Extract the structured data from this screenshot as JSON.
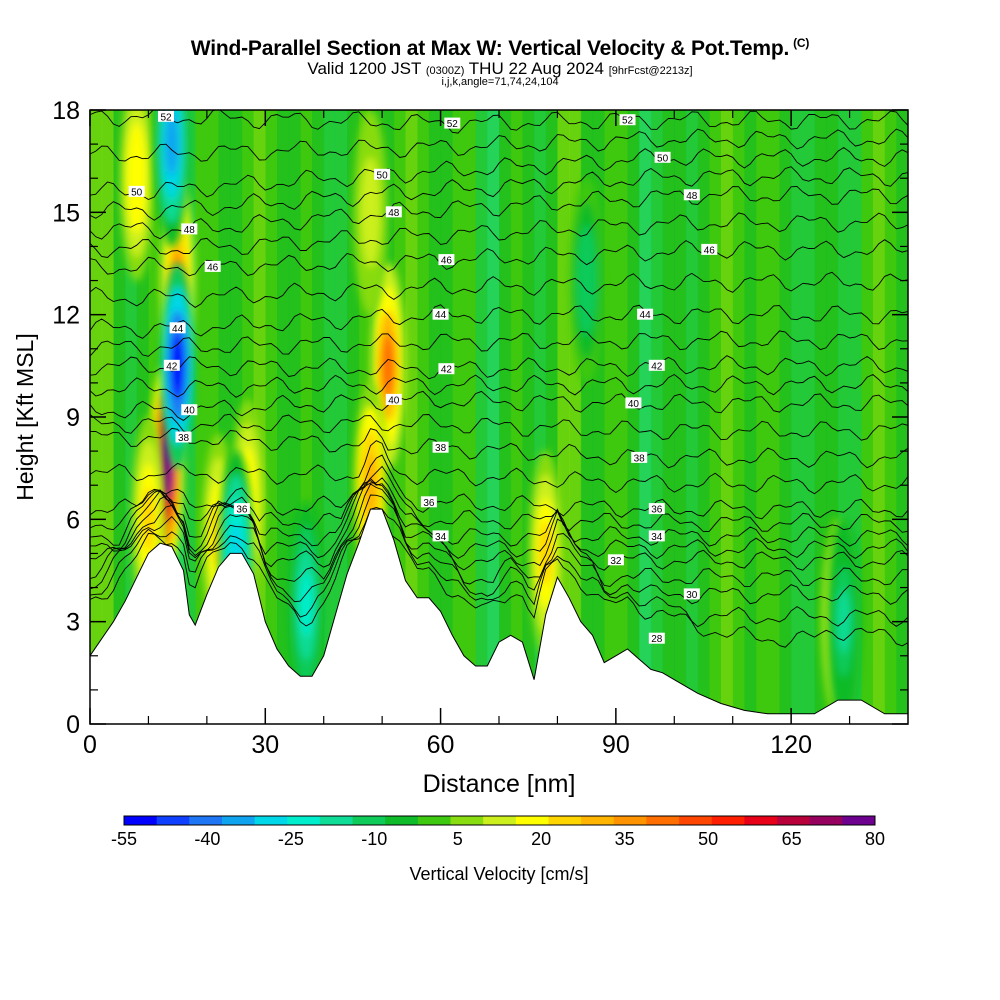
{
  "header": {
    "title": "Wind-Parallel Section at Max W: Vertical Velocity & Pot.Temp.",
    "copyright_mark": "(C)",
    "valid_prefix": "Valid 1200 JST",
    "valid_utc": "(0300Z)",
    "valid_date": "THU 22 Aug 2024",
    "forecast_info": "[9hrFcst@2213z]",
    "indices": "i,j,k,angle=71,74,24,104"
  },
  "colorbar": {
    "label": "Vertical Velocity [cm/s]",
    "tick_labels": [
      "-55",
      "-40",
      "-25",
      "-10",
      "5",
      "20",
      "35",
      "50",
      "65",
      "80"
    ],
    "colors": [
      "#0000ff",
      "#0f3fff",
      "#1e76f5",
      "#0fa3f0",
      "#00d7e8",
      "#00eecc",
      "#0fdc96",
      "#0fcb5a",
      "#0fbb28",
      "#3ec80f",
      "#88dc0f",
      "#ccf01e",
      "#ffff00",
      "#ffd500",
      "#ffb400",
      "#ff9400",
      "#ff6e00",
      "#ff4600",
      "#ff1e00",
      "#e80018",
      "#b8003a",
      "#96005e",
      "#6e0090"
    ]
  },
  "chart_data": {
    "type": "heatmap",
    "title": "Wind-Parallel Section at Max W: Vertical Velocity & Pot.Temp.",
    "xlabel": "Distance [nm]",
    "ylabel": "Height [Kft MSL]",
    "xlim": [
      0,
      140
    ],
    "ylim": [
      0,
      18
    ],
    "x_ticks": [
      0,
      30,
      60,
      90,
      120
    ],
    "y_ticks": [
      0,
      3,
      6,
      9,
      12,
      15,
      18
    ],
    "color_variable": "Vertical Velocity [cm/s]",
    "color_range": [
      -55,
      80
    ],
    "contour_variable": "Potential Temperature",
    "terrain": {
      "x": [
        0,
        2,
        4,
        6,
        8,
        10,
        12,
        14,
        16,
        17,
        18,
        20,
        22,
        24,
        26,
        28,
        30,
        31,
        32,
        34,
        36,
        38,
        40,
        42,
        44,
        46,
        48,
        50,
        52,
        54,
        56,
        58,
        60,
        62,
        64,
        66,
        68,
        70,
        72,
        74,
        76,
        78,
        80,
        82,
        84,
        86,
        88,
        90,
        92,
        94,
        96,
        98,
        100,
        104,
        108,
        112,
        116,
        120,
        124,
        128,
        132,
        136,
        140
      ],
      "height": [
        2.0,
        2.5,
        3.0,
        3.6,
        4.3,
        5.0,
        5.3,
        5.2,
        4.5,
        3.2,
        2.9,
        3.8,
        4.6,
        5.0,
        5.0,
        4.4,
        3.0,
        2.6,
        2.2,
        1.7,
        1.4,
        1.4,
        2.0,
        3.2,
        4.4,
        5.3,
        6.3,
        6.3,
        5.4,
        4.2,
        3.7,
        3.7,
        3.3,
        2.6,
        2.0,
        1.7,
        1.7,
        2.4,
        2.6,
        2.4,
        1.3,
        3.2,
        4.3,
        3.7,
        3.0,
        2.6,
        1.8,
        2.0,
        2.2,
        1.9,
        1.6,
        1.5,
        1.3,
        0.9,
        0.6,
        0.4,
        0.3,
        0.3,
        0.3,
        0.7,
        0.7,
        0.3,
        0.3
      ]
    },
    "updraft_cores": [
      {
        "x": 13,
        "height": 7.5,
        "w": 75
      },
      {
        "x": 51,
        "height": 10.5,
        "w": 40
      },
      {
        "x": 48,
        "height": 7.0,
        "w": 30
      },
      {
        "x": 8,
        "height": 16.0,
        "w": 20
      },
      {
        "x": 10,
        "height": 6.0,
        "w": 25
      },
      {
        "x": 22,
        "height": 5.5,
        "w": 25
      },
      {
        "x": 27,
        "height": 6.5,
        "w": 20
      },
      {
        "x": 78,
        "height": 5.0,
        "w": 25
      },
      {
        "x": 128,
        "height": 3.0,
        "w": 20
      },
      {
        "x": 48,
        "height": 15.0,
        "w": 15
      },
      {
        "x": 15,
        "height": 13.0,
        "w": 35
      }
    ],
    "downdraft_cores": [
      {
        "x": 15,
        "height": 10.5,
        "w": -55
      },
      {
        "x": 14,
        "height": 17.0,
        "w": -35
      },
      {
        "x": 25,
        "height": 5.0,
        "w": -30
      },
      {
        "x": 37,
        "height": 3.5,
        "w": -25
      },
      {
        "x": 129,
        "height": 3.0,
        "w": -15
      },
      {
        "x": 85,
        "height": 13.0,
        "w": -12
      }
    ],
    "theta_contours": [
      {
        "label": "28",
        "label_x": 97,
        "label_y": 2.5
      },
      {
        "label": "30",
        "label_x": 103,
        "label_y": 3.8
      },
      {
        "label": "32",
        "label_x": 90,
        "label_y": 4.8
      },
      {
        "label": "34",
        "label_x": 60,
        "label_y": 5.5
      },
      {
        "label": "34",
        "label_x": 97,
        "label_y": 5.5
      },
      {
        "label": "36",
        "label_x": 26,
        "label_y": 6.3
      },
      {
        "label": "36",
        "label_x": 58,
        "label_y": 6.5
      },
      {
        "label": "36",
        "label_x": 97,
        "label_y": 6.3
      },
      {
        "label": "38",
        "label_x": 16,
        "label_y": 8.4
      },
      {
        "label": "38",
        "label_x": 60,
        "label_y": 8.1
      },
      {
        "label": "38",
        "label_x": 94,
        "label_y": 7.8
      },
      {
        "label": "40",
        "label_x": 17,
        "label_y": 9.2
      },
      {
        "label": "40",
        "label_x": 52,
        "label_y": 9.5
      },
      {
        "label": "40",
        "label_x": 93,
        "label_y": 9.4
      },
      {
        "label": "42",
        "label_x": 14,
        "label_y": 10.5
      },
      {
        "label": "42",
        "label_x": 61,
        "label_y": 10.4
      },
      {
        "label": "42",
        "label_x": 97,
        "label_y": 10.5
      },
      {
        "label": "44",
        "label_x": 15,
        "label_y": 11.6
      },
      {
        "label": "44",
        "label_x": 60,
        "label_y": 12.0
      },
      {
        "label": "44",
        "label_x": 95,
        "label_y": 12.0
      },
      {
        "label": "46",
        "label_x": 21,
        "label_y": 13.4
      },
      {
        "label": "46",
        "label_x": 61,
        "label_y": 13.6
      },
      {
        "label": "46",
        "label_x": 106,
        "label_y": 13.9
      },
      {
        "label": "48",
        "label_x": 17,
        "label_y": 14.5
      },
      {
        "label": "48",
        "label_x": 52,
        "label_y": 15.0
      },
      {
        "label": "48",
        "label_x": 103,
        "label_y": 15.5
      },
      {
        "label": "50",
        "label_x": 8,
        "label_y": 15.6
      },
      {
        "label": "50",
        "label_x": 50,
        "label_y": 16.1
      },
      {
        "label": "50",
        "label_x": 98,
        "label_y": 16.6
      },
      {
        "label": "52",
        "label_x": 13,
        "label_y": 17.8
      },
      {
        "label": "52",
        "label_x": 62,
        "label_y": 17.6
      },
      {
        "label": "52",
        "label_x": 92,
        "label_y": 17.7
      }
    ]
  }
}
